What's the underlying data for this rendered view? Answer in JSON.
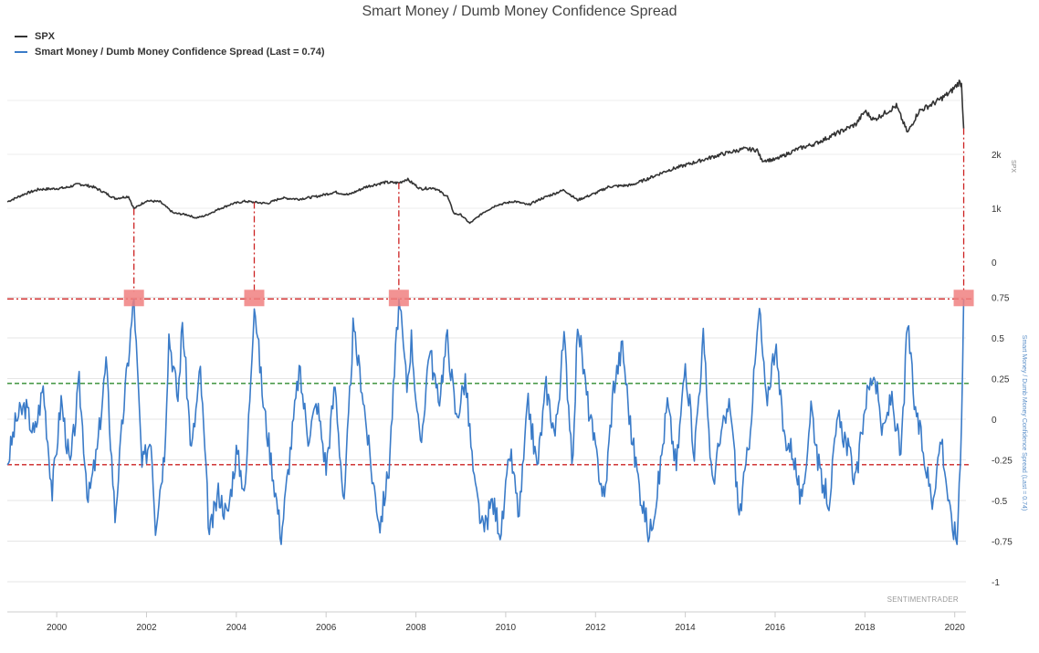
{
  "chart_data": {
    "type": "line",
    "title": "Smart Money / Dumb Money Confidence Spread",
    "legend": [
      {
        "name": "SPX",
        "color": "#333333"
      },
      {
        "name": "Smart Money / Dumb Money Confidence Spread (Last = 0.74)",
        "color": "#3a7bc8"
      }
    ],
    "legend_position": "top-left",
    "credit": "SENTIMENTRADER",
    "x_axis": {
      "ticks": [
        "2000",
        "2002",
        "2004",
        "2006",
        "2008",
        "2010",
        "2012",
        "2014",
        "2016",
        "2018",
        "2020"
      ],
      "range": [
        1998.9,
        2020.25
      ]
    },
    "spx_axis": {
      "title": "SPX",
      "ticks": [
        "2k",
        "1k",
        "0"
      ],
      "tick_values": [
        2000,
        1000,
        0
      ]
    },
    "spread_axis": {
      "title": "Smart Money / Dumb Money Confidence Spread (Last = 0.74)",
      "ticks": [
        "0.75",
        "0.5",
        "0.25",
        "0",
        "-0.25",
        "-0.5",
        "-0.75",
        "-1"
      ],
      "tick_values": [
        0.75,
        0.5,
        0.25,
        0,
        -0.25,
        -0.5,
        -0.75,
        -1
      ],
      "range": [
        -1,
        0.75
      ]
    },
    "reference_lines": [
      {
        "value": 0.74,
        "color": "#cc2222",
        "style": "dash-dot"
      },
      {
        "value": 0.22,
        "color": "#2e8b2e",
        "style": "dashed"
      },
      {
        "value": -0.28,
        "color": "#cc2222",
        "style": "dashed"
      }
    ],
    "highlight_dates": [
      2001.72,
      2004.4,
      2007.62,
      2020.2
    ],
    "series": [
      {
        "name": "SPX",
        "axis": "spx",
        "color": "#333333",
        "points": [
          [
            1998.9,
            1120
          ],
          [
            1999.3,
            1270
          ],
          [
            1999.6,
            1350
          ],
          [
            1999.9,
            1360
          ],
          [
            2000.2,
            1380
          ],
          [
            2000.5,
            1450
          ],
          [
            2000.8,
            1400
          ],
          [
            2001.0,
            1320
          ],
          [
            2001.3,
            1180
          ],
          [
            2001.6,
            1220
          ],
          [
            2001.72,
            990
          ],
          [
            2002.0,
            1140
          ],
          [
            2002.3,
            1120
          ],
          [
            2002.6,
            910
          ],
          [
            2002.9,
            880
          ],
          [
            2003.1,
            820
          ],
          [
            2003.3,
            860
          ],
          [
            2003.6,
            980
          ],
          [
            2003.9,
            1080
          ],
          [
            2004.2,
            1130
          ],
          [
            2004.4,
            1110
          ],
          [
            2004.7,
            1090
          ],
          [
            2005.0,
            1190
          ],
          [
            2005.4,
            1170
          ],
          [
            2005.8,
            1220
          ],
          [
            2006.2,
            1300
          ],
          [
            2006.5,
            1250
          ],
          [
            2006.9,
            1400
          ],
          [
            2007.3,
            1480
          ],
          [
            2007.62,
            1470
          ],
          [
            2007.8,
            1540
          ],
          [
            2008.1,
            1360
          ],
          [
            2008.4,
            1380
          ],
          [
            2008.7,
            1220
          ],
          [
            2008.85,
            900
          ],
          [
            2009.0,
            880
          ],
          [
            2009.2,
            720
          ],
          [
            2009.5,
            920
          ],
          [
            2009.8,
            1060
          ],
          [
            2010.2,
            1130
          ],
          [
            2010.5,
            1060
          ],
          [
            2010.8,
            1180
          ],
          [
            2011.3,
            1340
          ],
          [
            2011.6,
            1150
          ],
          [
            2012.0,
            1280
          ],
          [
            2012.3,
            1400
          ],
          [
            2012.8,
            1430
          ],
          [
            2013.2,
            1560
          ],
          [
            2013.6,
            1700
          ],
          [
            2014.0,
            1800
          ],
          [
            2014.4,
            1900
          ],
          [
            2014.8,
            2000
          ],
          [
            2015.3,
            2100
          ],
          [
            2015.6,
            2080
          ],
          [
            2015.7,
            1890
          ],
          [
            2016.0,
            1900
          ],
          [
            2016.5,
            2100
          ],
          [
            2016.9,
            2200
          ],
          [
            2017.3,
            2360
          ],
          [
            2017.8,
            2560
          ],
          [
            2018.0,
            2800
          ],
          [
            2018.2,
            2640
          ],
          [
            2018.7,
            2900
          ],
          [
            2018.95,
            2400
          ],
          [
            2019.2,
            2800
          ],
          [
            2019.6,
            2980
          ],
          [
            2019.9,
            3150
          ],
          [
            2020.1,
            3340
          ],
          [
            2020.15,
            3300
          ],
          [
            2020.2,
            2480
          ]
        ]
      },
      {
        "name": "Smart Money / Dumb Money Confidence Spread (Last = 0.74)",
        "axis": "spread",
        "color": "#3a7bc8",
        "points": [
          [
            1998.9,
            -0.28
          ],
          [
            1999.1,
            0.0
          ],
          [
            1999.3,
            0.08
          ],
          [
            1999.5,
            -0.1
          ],
          [
            1999.7,
            0.2
          ],
          [
            1999.9,
            -0.45
          ],
          [
            2000.1,
            0.12
          ],
          [
            2000.3,
            -0.3
          ],
          [
            2000.5,
            0.22
          ],
          [
            2000.7,
            -0.5
          ],
          [
            2000.9,
            -0.2
          ],
          [
            2001.1,
            0.35
          ],
          [
            2001.3,
            -0.6
          ],
          [
            2001.5,
            0.1
          ],
          [
            2001.72,
            0.74
          ],
          [
            2001.9,
            -0.3
          ],
          [
            2002.1,
            -0.1
          ],
          [
            2002.2,
            -0.65
          ],
          [
            2002.4,
            -0.2
          ],
          [
            2002.5,
            0.52
          ],
          [
            2002.7,
            0.12
          ],
          [
            2002.8,
            0.6
          ],
          [
            2003.0,
            -0.2
          ],
          [
            2003.2,
            0.3
          ],
          [
            2003.4,
            -0.72
          ],
          [
            2003.6,
            -0.45
          ],
          [
            2003.8,
            -0.6
          ],
          [
            2004.0,
            -0.2
          ],
          [
            2004.2,
            -0.45
          ],
          [
            2004.4,
            0.74
          ],
          [
            2004.6,
            0.1
          ],
          [
            2004.8,
            -0.3
          ],
          [
            2005.0,
            -0.72
          ],
          [
            2005.2,
            -0.2
          ],
          [
            2005.4,
            0.3
          ],
          [
            2005.6,
            -0.1
          ],
          [
            2005.8,
            0.1
          ],
          [
            2006.0,
            -0.3
          ],
          [
            2006.2,
            0.22
          ],
          [
            2006.4,
            -0.55
          ],
          [
            2006.6,
            0.55
          ],
          [
            2006.8,
            0.2
          ],
          [
            2007.0,
            -0.3
          ],
          [
            2007.2,
            -0.65
          ],
          [
            2007.4,
            -0.3
          ],
          [
            2007.62,
            0.74
          ],
          [
            2007.8,
            0.2
          ],
          [
            2007.9,
            0.5
          ],
          [
            2008.1,
            -0.2
          ],
          [
            2008.3,
            0.45
          ],
          [
            2008.5,
            0.1
          ],
          [
            2008.7,
            0.5
          ],
          [
            2008.9,
            0.0
          ],
          [
            2009.1,
            0.25
          ],
          [
            2009.3,
            -0.4
          ],
          [
            2009.5,
            -0.7
          ],
          [
            2009.7,
            -0.5
          ],
          [
            2009.9,
            -0.7
          ],
          [
            2010.1,
            -0.2
          ],
          [
            2010.3,
            -0.6
          ],
          [
            2010.5,
            0.1
          ],
          [
            2010.7,
            -0.3
          ],
          [
            2010.9,
            0.2
          ],
          [
            2011.1,
            -0.1
          ],
          [
            2011.3,
            0.5
          ],
          [
            2011.5,
            -0.3
          ],
          [
            2011.6,
            0.62
          ],
          [
            2011.8,
            0.15
          ],
          [
            2012.0,
            -0.2
          ],
          [
            2012.2,
            -0.5
          ],
          [
            2012.4,
            0.2
          ],
          [
            2012.6,
            0.45
          ],
          [
            2012.8,
            -0.1
          ],
          [
            2013.0,
            -0.45
          ],
          [
            2013.2,
            -0.72
          ],
          [
            2013.4,
            -0.4
          ],
          [
            2013.6,
            0.1
          ],
          [
            2013.8,
            -0.3
          ],
          [
            2014.0,
            0.35
          ],
          [
            2014.2,
            -0.2
          ],
          [
            2014.4,
            0.5
          ],
          [
            2014.6,
            -0.4
          ],
          [
            2014.8,
            -0.1
          ],
          [
            2015.0,
            0.1
          ],
          [
            2015.2,
            -0.6
          ],
          [
            2015.4,
            -0.2
          ],
          [
            2015.65,
            0.68
          ],
          [
            2015.8,
            0.1
          ],
          [
            2016.0,
            0.45
          ],
          [
            2016.2,
            -0.1
          ],
          [
            2016.4,
            -0.2
          ],
          [
            2016.6,
            -0.55
          ],
          [
            2016.8,
            0.1
          ],
          [
            2017.0,
            -0.35
          ],
          [
            2017.2,
            -0.5
          ],
          [
            2017.4,
            0.0
          ],
          [
            2017.6,
            -0.15
          ],
          [
            2017.8,
            -0.4
          ],
          [
            2018.0,
            0.1
          ],
          [
            2018.2,
            0.3
          ],
          [
            2018.4,
            -0.1
          ],
          [
            2018.6,
            0.15
          ],
          [
            2018.8,
            -0.25
          ],
          [
            2018.95,
            0.6
          ],
          [
            2019.1,
            0.1
          ],
          [
            2019.3,
            -0.2
          ],
          [
            2019.5,
            -0.5
          ],
          [
            2019.7,
            -0.1
          ],
          [
            2019.9,
            -0.6
          ],
          [
            2020.05,
            -0.75
          ],
          [
            2020.1,
            -0.4
          ],
          [
            2020.15,
            0.0
          ],
          [
            2020.2,
            0.74
          ]
        ]
      }
    ]
  }
}
